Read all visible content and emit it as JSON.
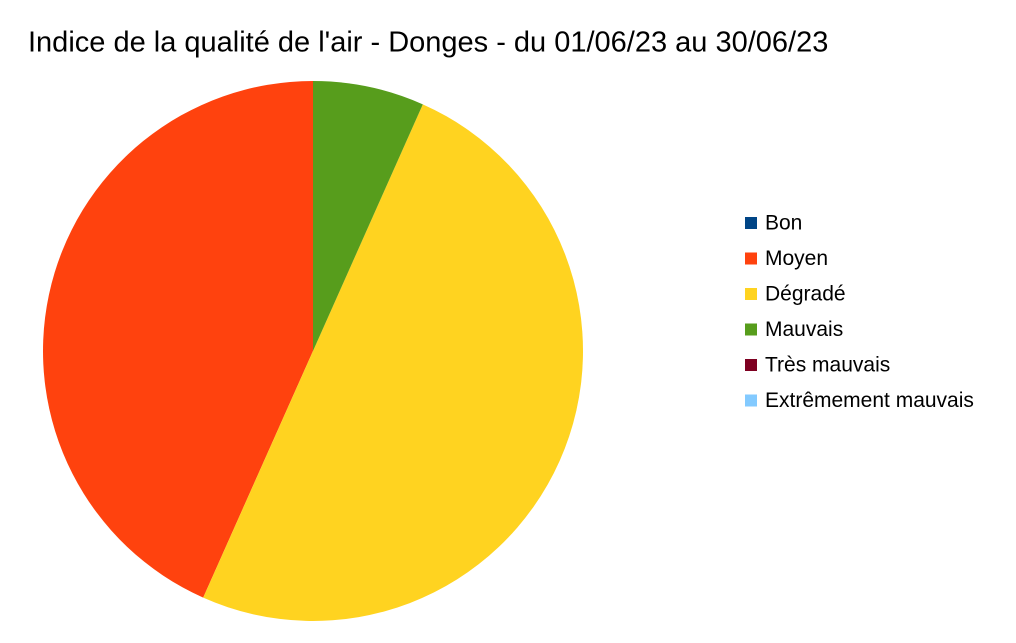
{
  "chart_data": {
    "type": "pie",
    "title": "Indice de la qualité de l'air - Donges - du 01/06/23 au 30/06/23",
    "categories": [
      "Bon",
      "Moyen",
      "Dégradé",
      "Mauvais",
      "Très mauvais",
      "Extrêmement mauvais"
    ],
    "values": [
      0,
      13,
      15,
      2,
      0,
      0
    ],
    "colors": [
      "#004586",
      "#ff420e",
      "#ffd320",
      "#579d1c",
      "#7e0021",
      "#83caff"
    ],
    "legend": "right"
  }
}
